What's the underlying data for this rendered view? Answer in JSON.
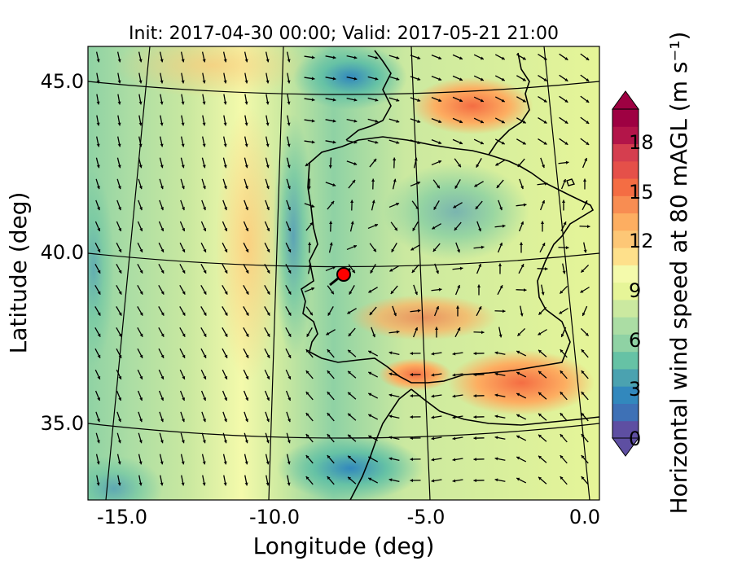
{
  "map": {
    "title": "Init: 2017-04-30 00:00; Valid: 2017-05-21 21:00",
    "xlabel": "Longitude (deg)",
    "ylabel": "Latitude (deg)",
    "x_ticks": [
      "-15.0",
      "-10.0",
      "-5.0",
      "0.0"
    ],
    "y_ticks": [
      "45.0",
      "40.0",
      "35.0"
    ],
    "extent": {
      "lon": [
        -15.9,
        0.1
      ],
      "lat": [
        32.8,
        46.2
      ]
    },
    "marker": {
      "lon": -7.5,
      "lat": 39.4,
      "color": "#ff0000"
    }
  },
  "colorbar": {
    "label": "Horizontal wind speed at 80 mAGL (m s⁻¹)",
    "ticks": [
      "0",
      "3",
      "6",
      "9",
      "12",
      "15",
      "18"
    ],
    "range": [
      0,
      20
    ],
    "colors": [
      "#5e4fa2",
      "#3e71b6",
      "#3288bd",
      "#4ba2b0",
      "#66c2a5",
      "#8fd2a4",
      "#abdda4",
      "#cbe9a0",
      "#e6f598",
      "#f4faab",
      "#fee08b",
      "#fdc776",
      "#fdae61",
      "#f88d52",
      "#f46d43",
      "#e55049",
      "#d53e4f",
      "#b31549",
      "#9e0142"
    ]
  }
}
